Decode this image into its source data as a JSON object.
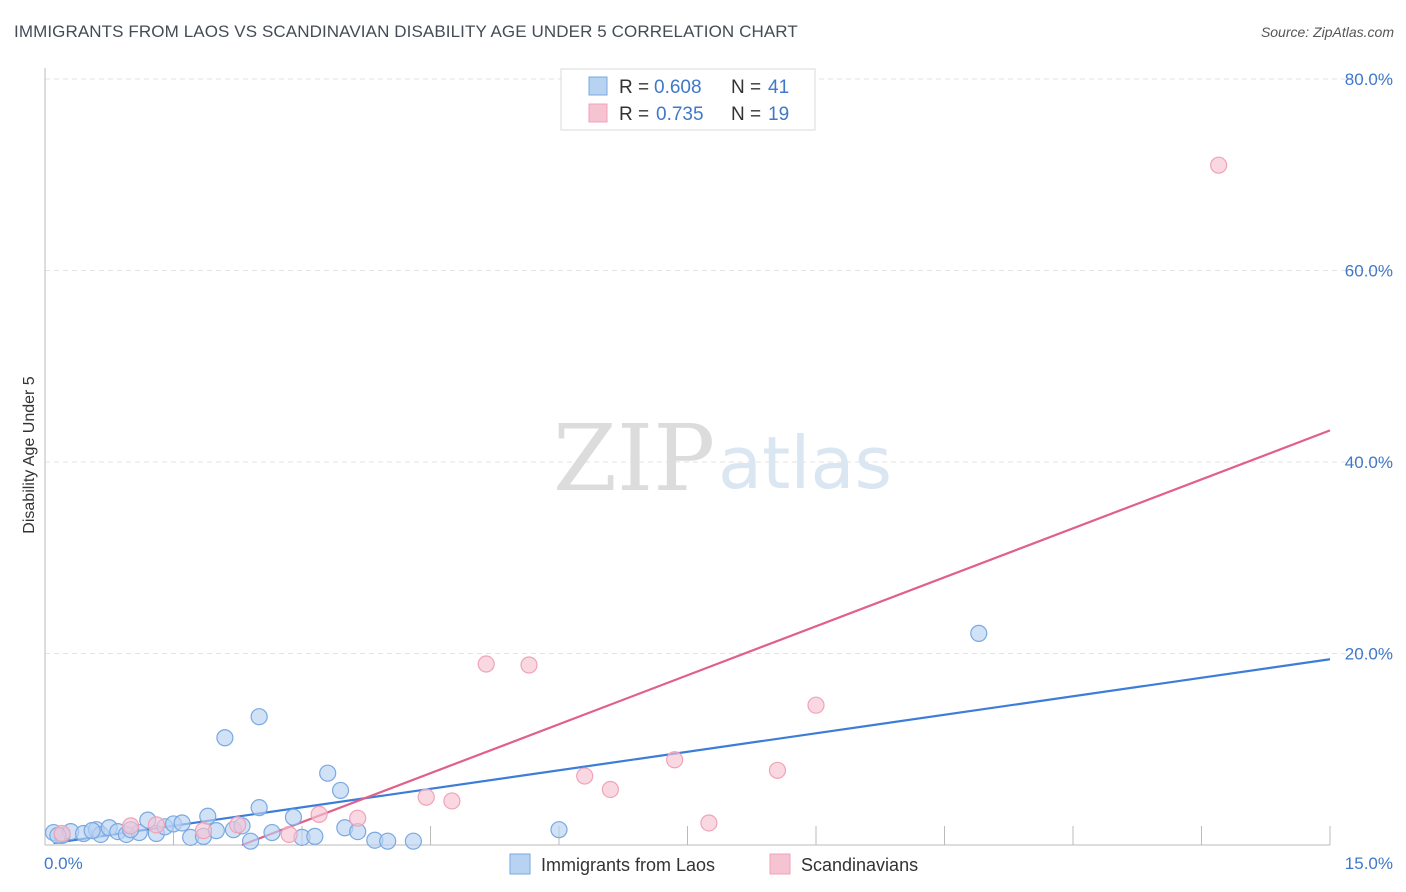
{
  "header": {
    "title": "IMMIGRANTS FROM LAOS VS SCANDINAVIAN DISABILITY AGE UNDER 5 CORRELATION CHART",
    "source": "Source: ZipAtlas.com"
  },
  "watermark": {
    "zip": "ZIP",
    "atlas": "atlas"
  },
  "legend": {
    "r_label": "R =",
    "n_label": "N =",
    "rows": [
      {
        "r": "0.608",
        "n": "41",
        "color": "#7aa8e0"
      },
      {
        "r": "0.735",
        "n": "19",
        "color": "#f0a3b8"
      }
    ]
  },
  "chart_data": {
    "type": "scatter",
    "title": "IMMIGRANTS FROM LAOS VS SCANDINAVIAN DISABILITY AGE UNDER 5 CORRELATION CHART",
    "xlabel": "",
    "ylabel": "Disability Age Under 5",
    "xlim": [
      0,
      15
    ],
    "ylim": [
      0,
      80
    ],
    "x_tick_labels": {
      "min": "0.0%",
      "max": "15.0%"
    },
    "y_ticks": [
      {
        "value": 20,
        "label": "20.0%"
      },
      {
        "value": 40,
        "label": "40.0%"
      },
      {
        "value": 60,
        "label": "60.0%"
      },
      {
        "value": 80,
        "label": "80.0%"
      }
    ],
    "grid": true,
    "legend_position": "top-center",
    "series": [
      {
        "name": "Immigrants from Laos",
        "color": "#3b7dd8",
        "fill": "#b8d2f2",
        "points": [
          [
            0.1,
            1.3
          ],
          [
            0.2,
            1.0
          ],
          [
            0.3,
            1.4
          ],
          [
            0.45,
            1.2
          ],
          [
            0.6,
            1.6
          ],
          [
            0.65,
            1.1
          ],
          [
            0.75,
            1.8
          ],
          [
            0.85,
            1.4
          ],
          [
            0.95,
            1.1
          ],
          [
            1.1,
            1.3
          ],
          [
            1.2,
            2.6
          ],
          [
            1.3,
            1.2
          ],
          [
            1.4,
            1.9
          ],
          [
            1.5,
            2.2
          ],
          [
            1.6,
            2.3
          ],
          [
            1.7,
            0.8
          ],
          [
            1.85,
            0.9
          ],
          [
            1.9,
            3.0
          ],
          [
            2.0,
            1.5
          ],
          [
            2.1,
            11.2
          ],
          [
            2.2,
            1.6
          ],
          [
            2.3,
            2.0
          ],
          [
            2.4,
            0.4
          ],
          [
            2.5,
            3.9
          ],
          [
            2.5,
            13.4
          ],
          [
            2.65,
            1.3
          ],
          [
            2.9,
            2.9
          ],
          [
            3.0,
            0.8
          ],
          [
            3.15,
            0.9
          ],
          [
            3.3,
            7.5
          ],
          [
            3.45,
            5.7
          ],
          [
            3.5,
            1.8
          ],
          [
            3.65,
            1.4
          ],
          [
            3.85,
            0.5
          ],
          [
            4.0,
            0.4
          ],
          [
            4.3,
            0.4
          ],
          [
            6.0,
            1.6
          ],
          [
            10.9,
            22.1
          ],
          [
            0.15,
            1.0
          ],
          [
            0.55,
            1.5
          ],
          [
            1.0,
            1.6
          ]
        ]
      },
      {
        "name": "Scandinavians",
        "color": "#e0608a",
        "fill": "#f6c3d2",
        "points": [
          [
            0.2,
            1.2
          ],
          [
            1.0,
            2.0
          ],
          [
            1.3,
            2.1
          ],
          [
            1.85,
            1.5
          ],
          [
            2.25,
            2.1
          ],
          [
            2.85,
            1.1
          ],
          [
            3.2,
            3.2
          ],
          [
            3.65,
            2.8
          ],
          [
            4.45,
            5.0
          ],
          [
            4.75,
            4.6
          ],
          [
            5.15,
            18.9
          ],
          [
            5.65,
            18.8
          ],
          [
            6.3,
            7.2
          ],
          [
            6.6,
            5.8
          ],
          [
            7.35,
            8.9
          ],
          [
            7.75,
            2.3
          ],
          [
            8.55,
            7.8
          ],
          [
            9.0,
            14.6
          ],
          [
            13.7,
            71.0
          ]
        ]
      }
    ],
    "trend_lines": [
      {
        "series": "Immigrants from Laos",
        "x": [
          0.1,
          15.0
        ],
        "y": [
          0.2,
          19.4
        ]
      },
      {
        "series": "Scandinavians",
        "x": [
          2.3,
          15.0
        ],
        "y": [
          0.0,
          43.3
        ]
      }
    ]
  }
}
